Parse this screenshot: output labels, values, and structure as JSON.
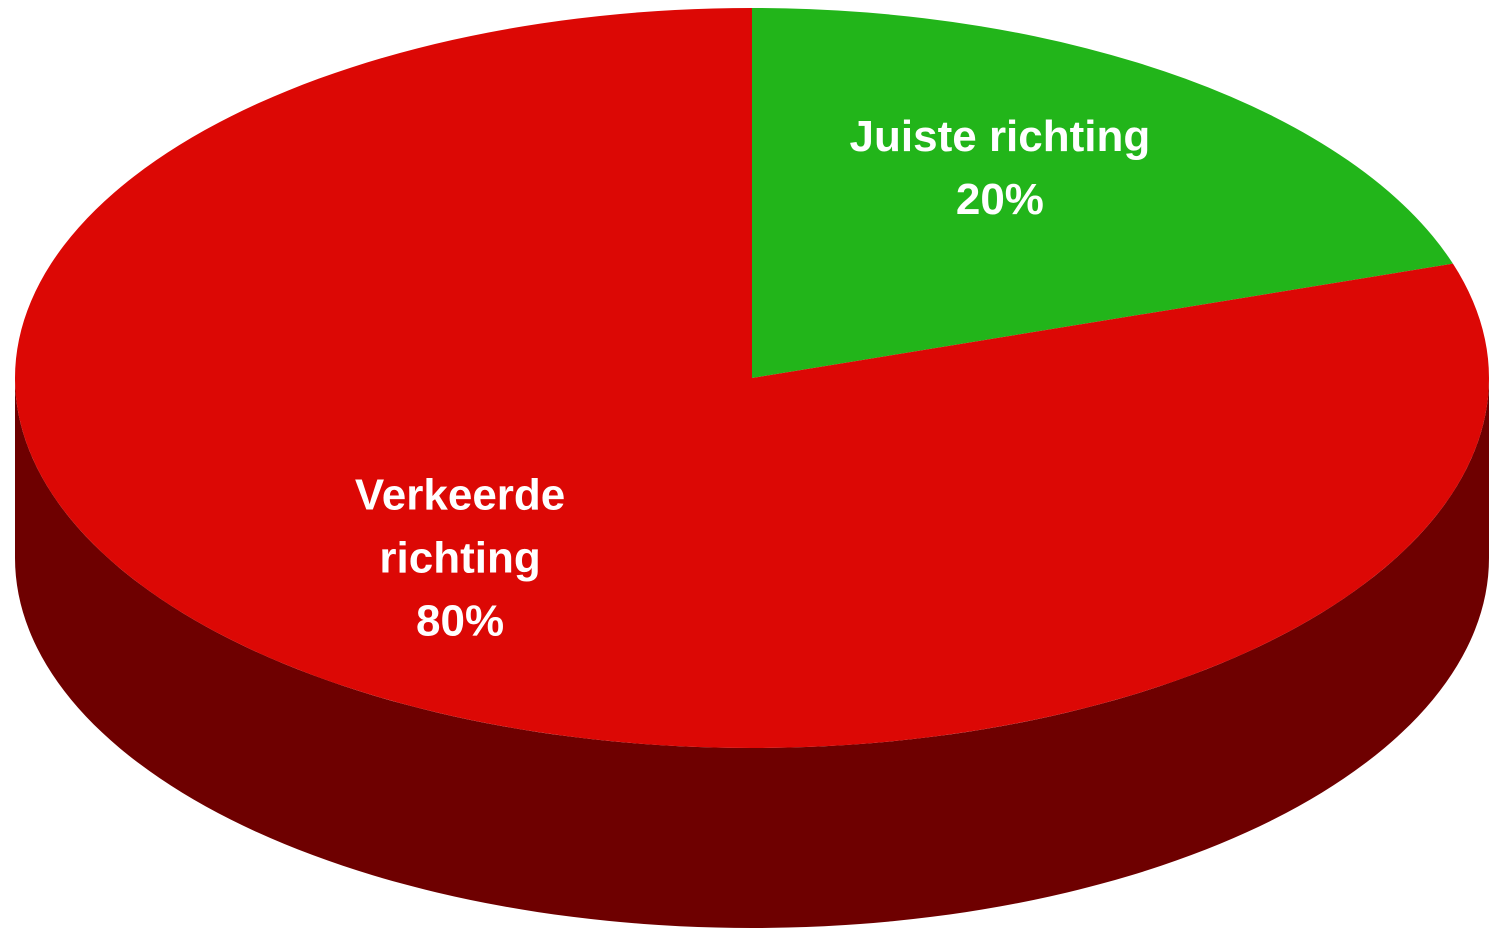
{
  "chart_data": {
    "type": "pie",
    "categories": [
      "Juiste richting",
      "Verkeerde richting"
    ],
    "values": [
      20,
      80
    ],
    "value_labels": [
      "20%",
      "80%"
    ],
    "colors": [
      "#22b51a",
      "#dc0805"
    ],
    "three_d": true
  }
}
